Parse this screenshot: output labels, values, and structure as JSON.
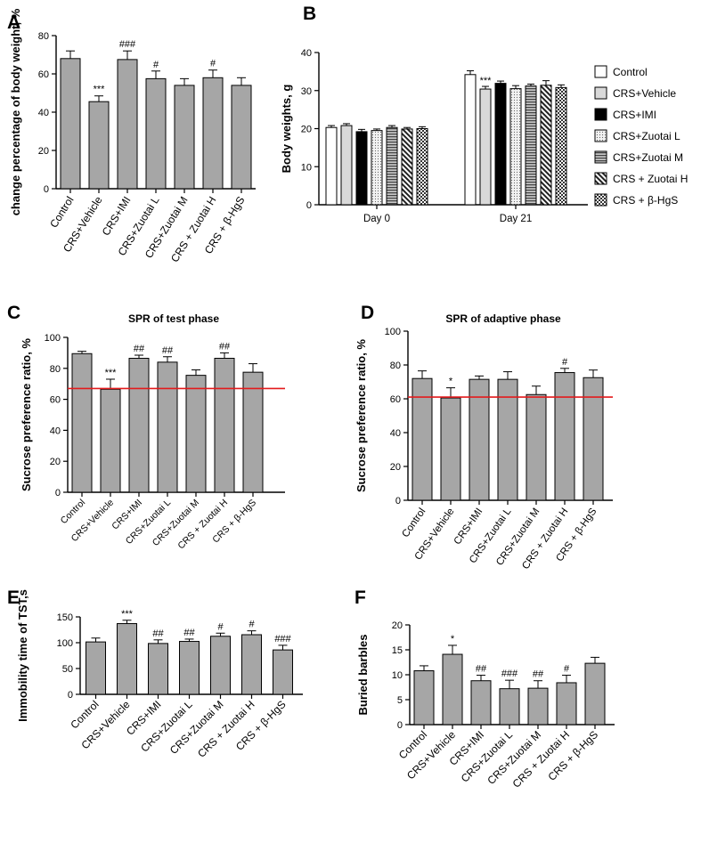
{
  "chart_data": [
    {
      "id": "A",
      "type": "bar",
      "panel_label": "A",
      "title": "",
      "ylabel": "change percentage of body weight, %",
      "ylim": [
        0,
        80
      ],
      "yticks": [
        0,
        20,
        40,
        60,
        80
      ],
      "categories": [
        "Control",
        "CRS+Vehicle",
        "CRS+IMI",
        "CRS+Zuotai L",
        "CRS+Zuotai M",
        "CRS + Zuotai H",
        "CRS + β-HgS"
      ],
      "values": [
        68,
        45.5,
        67.5,
        57.5,
        54,
        58,
        54
      ],
      "errors": [
        4,
        3,
        4.5,
        4,
        3.5,
        4,
        4
      ],
      "annotations": [
        "",
        "***",
        "###",
        "#",
        "",
        "#",
        ""
      ],
      "bar_color": "#a6a6a6"
    },
    {
      "id": "B",
      "type": "grouped_bar",
      "panel_label": "B",
      "title": "",
      "ylabel": "Body weights, g",
      "ylim": [
        0,
        40
      ],
      "yticks": [
        0,
        10,
        20,
        30,
        40
      ],
      "groups": [
        "Day 0",
        "Day 21"
      ],
      "series": [
        {
          "name": "Control",
          "values": [
            20.3,
            34.2
          ],
          "errors": [
            0.5,
            1.0
          ],
          "fill": "white"
        },
        {
          "name": "CRS+Vehicle",
          "values": [
            20.8,
            30.4
          ],
          "errors": [
            0.5,
            0.7
          ],
          "fill": "lightgray"
        },
        {
          "name": "CRS+IMI",
          "values": [
            19.2,
            31.9
          ],
          "errors": [
            0.6,
            0.6
          ],
          "fill": "black"
        },
        {
          "name": "CRS+Zuotai L",
          "values": [
            19.5,
            30.5
          ],
          "errors": [
            0.4,
            0.8
          ],
          "fill": "dots"
        },
        {
          "name": "CRS+Zuotai M",
          "values": [
            20.3,
            31.2
          ],
          "errors": [
            0.5,
            0.5
          ],
          "fill": "hstripe"
        },
        {
          "name": "CRS + Zuotai H",
          "values": [
            19.9,
            31.4
          ],
          "errors": [
            0.4,
            1.2
          ],
          "fill": "diag"
        },
        {
          "name": "CRS + β-HgS",
          "values": [
            20.0,
            30.8
          ],
          "errors": [
            0.5,
            0.7
          ],
          "fill": "check"
        }
      ],
      "annotations": [
        {
          "group": 1,
          "series": 1,
          "text": "***"
        }
      ],
      "legend_position": "right"
    },
    {
      "id": "C",
      "type": "bar",
      "panel_label": "C",
      "title": "SPR of test phase",
      "ylabel": "Sucrose preference ratio, %",
      "ylim": [
        0,
        100
      ],
      "yticks": [
        0,
        20,
        40,
        60,
        80,
        100
      ],
      "categories": [
        "Control",
        "CRS+Vehicle",
        "CRS+IMI",
        "CRS+Zuotai L",
        "CRS+Zuotai M",
        "CRS + Zuotai H",
        "CRS + β-HgS"
      ],
      "values": [
        89.5,
        66.5,
        86.5,
        84,
        75.5,
        86.5,
        77.5
      ],
      "errors": [
        1.5,
        6.5,
        2,
        3.5,
        3.5,
        3.5,
        5.5
      ],
      "annotations": [
        "",
        "***",
        "##",
        "##",
        "",
        "##",
        ""
      ],
      "reference_line": 67,
      "reference_color": "#e31a1c",
      "bar_color": "#a6a6a6"
    },
    {
      "id": "D",
      "type": "bar",
      "panel_label": "D",
      "title": "SPR of adaptive phase",
      "ylabel": "Sucrose preference ratio, %",
      "ylim": [
        0,
        100
      ],
      "yticks": [
        0,
        20,
        40,
        60,
        80,
        100
      ],
      "categories": [
        "Control",
        "CRS+Vehicle",
        "CRS+IMI",
        "CRS+Zuotai L",
        "CRS+Zuotai M",
        "CRS + Zuotai H",
        "CRS + β-HgS"
      ],
      "values": [
        72,
        60.5,
        71.5,
        71.5,
        62.5,
        75.5,
        72.5
      ],
      "errors": [
        4.5,
        6,
        2,
        4.5,
        5,
        2.5,
        4.5
      ],
      "annotations": [
        "",
        "*",
        "",
        "",
        "",
        "#",
        ""
      ],
      "reference_line": 61,
      "reference_color": "#e31a1c",
      "bar_color": "#a6a6a6"
    },
    {
      "id": "E",
      "type": "bar",
      "panel_label": "E",
      "title": "",
      "ylabel": "Immobility time of TST,s",
      "ylim": [
        0,
        150
      ],
      "yticks": [
        0,
        50,
        100,
        150
      ],
      "categories": [
        "Control",
        "CRS+Vehicle",
        "CRS+IMI",
        "CRS+Zuotai L",
        "CRS+Zuotai M",
        "CRS + Zuotai H",
        "CRS + β-HgS"
      ],
      "values": [
        101.5,
        137,
        98.5,
        102.5,
        112.5,
        115.5,
        86
      ],
      "errors": [
        7.5,
        6.5,
        7,
        4.5,
        6,
        7.5,
        9
      ],
      "annotations": [
        "",
        "***",
        "##",
        "##",
        "#",
        "#",
        "###"
      ],
      "bar_color": "#a6a6a6"
    },
    {
      "id": "F",
      "type": "bar",
      "panel_label": "F",
      "title": "",
      "ylabel": "Buried barbles",
      "ylim": [
        0,
        20
      ],
      "yticks": [
        0,
        5,
        10,
        15,
        20
      ],
      "categories": [
        "Control",
        "CRS+Vehicle",
        "CRS+IMI",
        "CRS+Zuotai L",
        "CRS+Zuotai M",
        "CRS + Zuotai H",
        "CRS + β-HgS"
      ],
      "values": [
        10.8,
        14.1,
        8.8,
        7.2,
        7.3,
        8.4,
        12.3
      ],
      "errors": [
        1,
        1.8,
        1.1,
        1.7,
        1.5,
        1.5,
        1.2
      ],
      "annotations": [
        "",
        "*",
        "##",
        "###",
        "##",
        "#",
        ""
      ],
      "bar_color": "#a6a6a6"
    }
  ]
}
